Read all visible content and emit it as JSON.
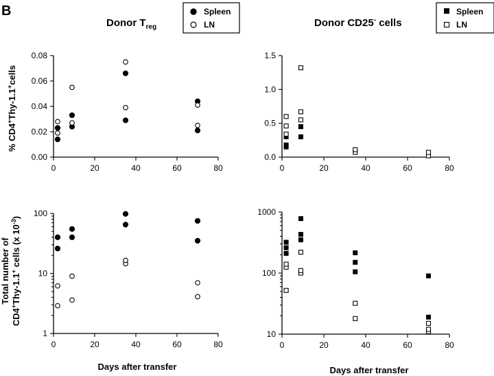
{
  "figure": {
    "panel_letter": "B",
    "left_title": "Donor T",
    "left_title_sub": "reg",
    "right_title": "Donor CD25",
    "right_title_sup": "-",
    "right_title_tail": " cells",
    "xlabel": "Days after transfer",
    "ylabel_top": {
      "prefix": "% CD4",
      "sup1": "+",
      "mid": "Thy-1.1",
      "sup2": "+",
      "suffix": "cells"
    },
    "ylabel_bottom_line1": "Total number of",
    "ylabel_bottom_line2": {
      "prefix": "CD4",
      "sup1": "+",
      "mid": "Thy-1.1",
      "sup2": "+",
      "suffix": " cells (x 10",
      "sup3": "-3",
      "end": ")"
    },
    "legend_left": [
      "Spleen",
      "LN"
    ],
    "legend_right": [
      "Spleen",
      "LN"
    ]
  },
  "chart_data": [
    {
      "id": "treg-percent",
      "type": "scatter",
      "title": "Donor Treg",
      "xlabel": "",
      "ylabel": "% CD4+Thy-1.1+cells",
      "xlim": [
        0,
        80
      ],
      "ylim": [
        0,
        0.08
      ],
      "yscale": "linear",
      "xticks": [
        "0",
        "20",
        "40",
        "60",
        "80"
      ],
      "yticks": [
        "0.00",
        "0.02",
        "0.04",
        "0.06",
        "0.08"
      ],
      "series": [
        {
          "name": "Spleen",
          "marker": "filled-circle",
          "x": [
            2,
            2,
            9,
            9,
            35,
            35,
            70,
            70
          ],
          "y": [
            0.014,
            0.023,
            0.024,
            0.033,
            0.029,
            0.066,
            0.021,
            0.044
          ]
        },
        {
          "name": "LN",
          "marker": "open-circle",
          "x": [
            2,
            2,
            9,
            9,
            35,
            35,
            70,
            70
          ],
          "y": [
            0.019,
            0.028,
            0.027,
            0.055,
            0.039,
            0.075,
            0.025,
            0.041
          ]
        }
      ]
    },
    {
      "id": "cd25-percent",
      "type": "scatter",
      "title": "Donor CD25- cells",
      "xlabel": "",
      "ylabel": "",
      "xlim": [
        0,
        80
      ],
      "ylim": [
        0,
        1.5
      ],
      "yscale": "linear",
      "xticks": [
        "0",
        "20",
        "40",
        "60",
        "80"
      ],
      "yticks": [
        "0.0",
        "0.5",
        "1.0",
        "1.5"
      ],
      "series": [
        {
          "name": "Spleen",
          "marker": "filled-square",
          "x": [
            2,
            2,
            2,
            9,
            9,
            9
          ],
          "y": [
            0.15,
            0.18,
            0.3,
            0.3,
            0.45,
            0.45
          ]
        },
        {
          "name": "LN",
          "marker": "open-square",
          "x": [
            2,
            2,
            2,
            9,
            9,
            9,
            35,
            35,
            70,
            70
          ],
          "y": [
            0.34,
            0.46,
            0.6,
            0.55,
            0.67,
            1.32,
            0.07,
            0.11,
            0.02,
            0.07
          ]
        }
      ]
    },
    {
      "id": "treg-total",
      "type": "scatter",
      "title": "",
      "xlabel": "Days after transfer",
      "ylabel": "Total number of CD4+Thy-1.1+ cells (x 10-3)",
      "xlim": [
        0,
        80
      ],
      "ylim": [
        1,
        100
      ],
      "yscale": "log",
      "xticks": [
        "0",
        "20",
        "40",
        "60",
        "80"
      ],
      "yticks": [
        "1",
        "10",
        "100"
      ],
      "series": [
        {
          "name": "Spleen",
          "marker": "filled-circle",
          "x": [
            2,
            2,
            9,
            9,
            35,
            35,
            70,
            70
          ],
          "y": [
            26,
            40,
            40,
            55,
            65,
            98,
            35,
            75
          ]
        },
        {
          "name": "LN",
          "marker": "open-circle",
          "x": [
            2,
            2,
            9,
            9,
            35,
            35,
            70,
            70
          ],
          "y": [
            2.9,
            6.2,
            3.6,
            9.0,
            14.5,
            16.5,
            4.1,
            7.0
          ]
        }
      ]
    },
    {
      "id": "cd25-total",
      "type": "scatter",
      "title": "",
      "xlabel": "Days after transfer",
      "ylabel": "",
      "xlim": [
        0,
        80
      ],
      "ylim": [
        10,
        1000
      ],
      "yscale": "log",
      "xticks": [
        "0",
        "20",
        "40",
        "60",
        "80"
      ],
      "yticks": [
        "10",
        "100",
        "1000"
      ],
      "series": [
        {
          "name": "Spleen",
          "marker": "filled-square",
          "x": [
            2,
            2,
            2,
            9,
            9,
            9,
            35,
            35,
            35,
            70,
            70
          ],
          "y": [
            210,
            260,
            320,
            350,
            430,
            780,
            105,
            150,
            215,
            19,
            90
          ]
        },
        {
          "name": "LN",
          "marker": "open-square",
          "x": [
            2,
            2,
            2,
            9,
            9,
            9,
            35,
            35,
            70,
            70,
            70
          ],
          "y": [
            52,
            125,
            140,
            100,
            110,
            220,
            18,
            32,
            11,
            12,
            15
          ]
        }
      ]
    }
  ]
}
